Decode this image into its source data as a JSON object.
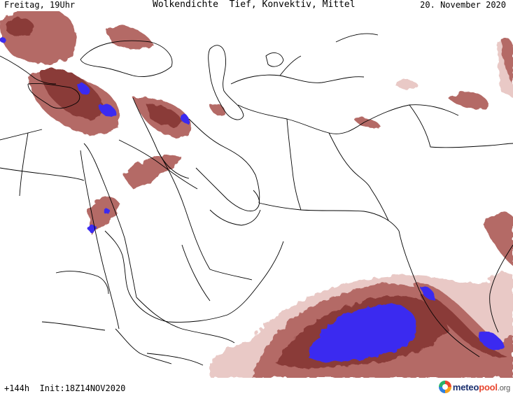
{
  "header": {
    "day_time": "Freitag, 19Uhr",
    "title": "Wolkendichte  Tief, Konvektiv, Mittel",
    "date": "20. November 2020"
  },
  "footer": {
    "run_info": "+144h  Init:18Z14NOV2020"
  },
  "logo": {
    "brand_part1": "meteo",
    "brand_dot": "pool",
    "brand_tld": ".org"
  },
  "colors": {
    "cloud_light": "#e9c9c6",
    "cloud_medium": "#b46a66",
    "cloud_dark": "#8a3b38",
    "cloud_max": "#3b2cf0",
    "borders": "#000000",
    "background": "#ffffff"
  }
}
